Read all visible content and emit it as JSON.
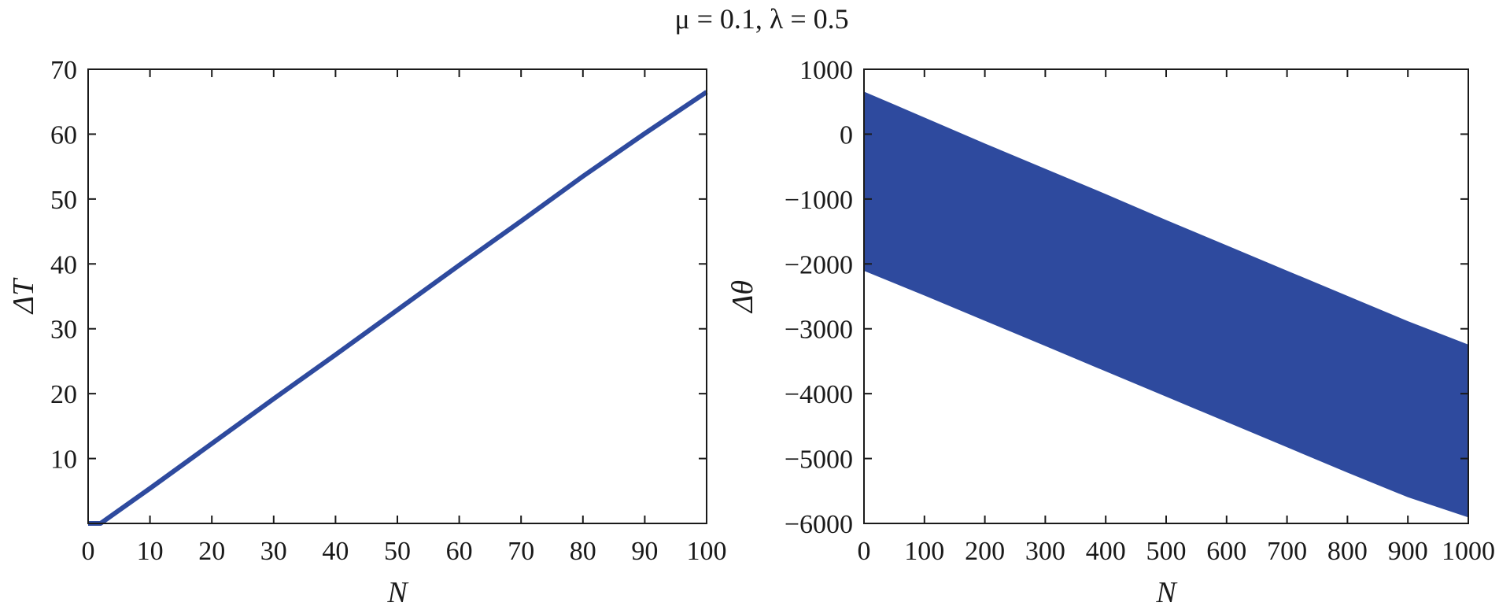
{
  "figure": {
    "title": "μ = 0.1, λ = 0.5"
  },
  "chart_data": [
    {
      "type": "line",
      "title": "",
      "xlabel": "N",
      "ylabel": "ΔT",
      "xlim": [
        0,
        100
      ],
      "ylim": [
        0,
        70
      ],
      "x_ticks": [
        0,
        10,
        20,
        30,
        40,
        50,
        60,
        70,
        80,
        90,
        100
      ],
      "y_ticks": [
        10,
        20,
        30,
        40,
        50,
        60,
        70
      ],
      "grid": false,
      "series": [
        {
          "color": "#2e4a9e",
          "x": [
            0,
            2,
            10,
            20,
            30,
            40,
            50,
            60,
            70,
            80,
            90,
            100
          ],
          "y": [
            0,
            0,
            5.4,
            12.3,
            19.2,
            26.0,
            32.9,
            39.8,
            46.6,
            53.5,
            60.1,
            66.5
          ]
        }
      ]
    },
    {
      "type": "area",
      "title": "",
      "xlabel": "N",
      "ylabel": "Δθ",
      "xlim": [
        0,
        1000
      ],
      "ylim": [
        -6000,
        1000
      ],
      "x_ticks": [
        0,
        100,
        200,
        300,
        400,
        500,
        600,
        700,
        800,
        900,
        1000
      ],
      "y_ticks": [
        -6000,
        -5000,
        -4000,
        -3000,
        -2000,
        -1000,
        0,
        1000
      ],
      "y_tick_labels": [
        "−6000",
        "−5000",
        "−4000",
        "−3000",
        "−2000",
        "−1000",
        "0",
        "1000"
      ],
      "grid": false,
      "series": [
        {
          "color": "#2e4a9e",
          "x": [
            0,
            100,
            200,
            300,
            400,
            500,
            600,
            700,
            800,
            900,
            1000
          ],
          "upper": [
            650,
            250,
            -150,
            -540,
            -930,
            -1330,
            -1720,
            -2110,
            -2500,
            -2890,
            -3250
          ],
          "lower": [
            -2100,
            -2480,
            -2870,
            -3260,
            -3650,
            -4040,
            -4430,
            -4820,
            -5210,
            -5590,
            -5900
          ]
        }
      ]
    }
  ]
}
